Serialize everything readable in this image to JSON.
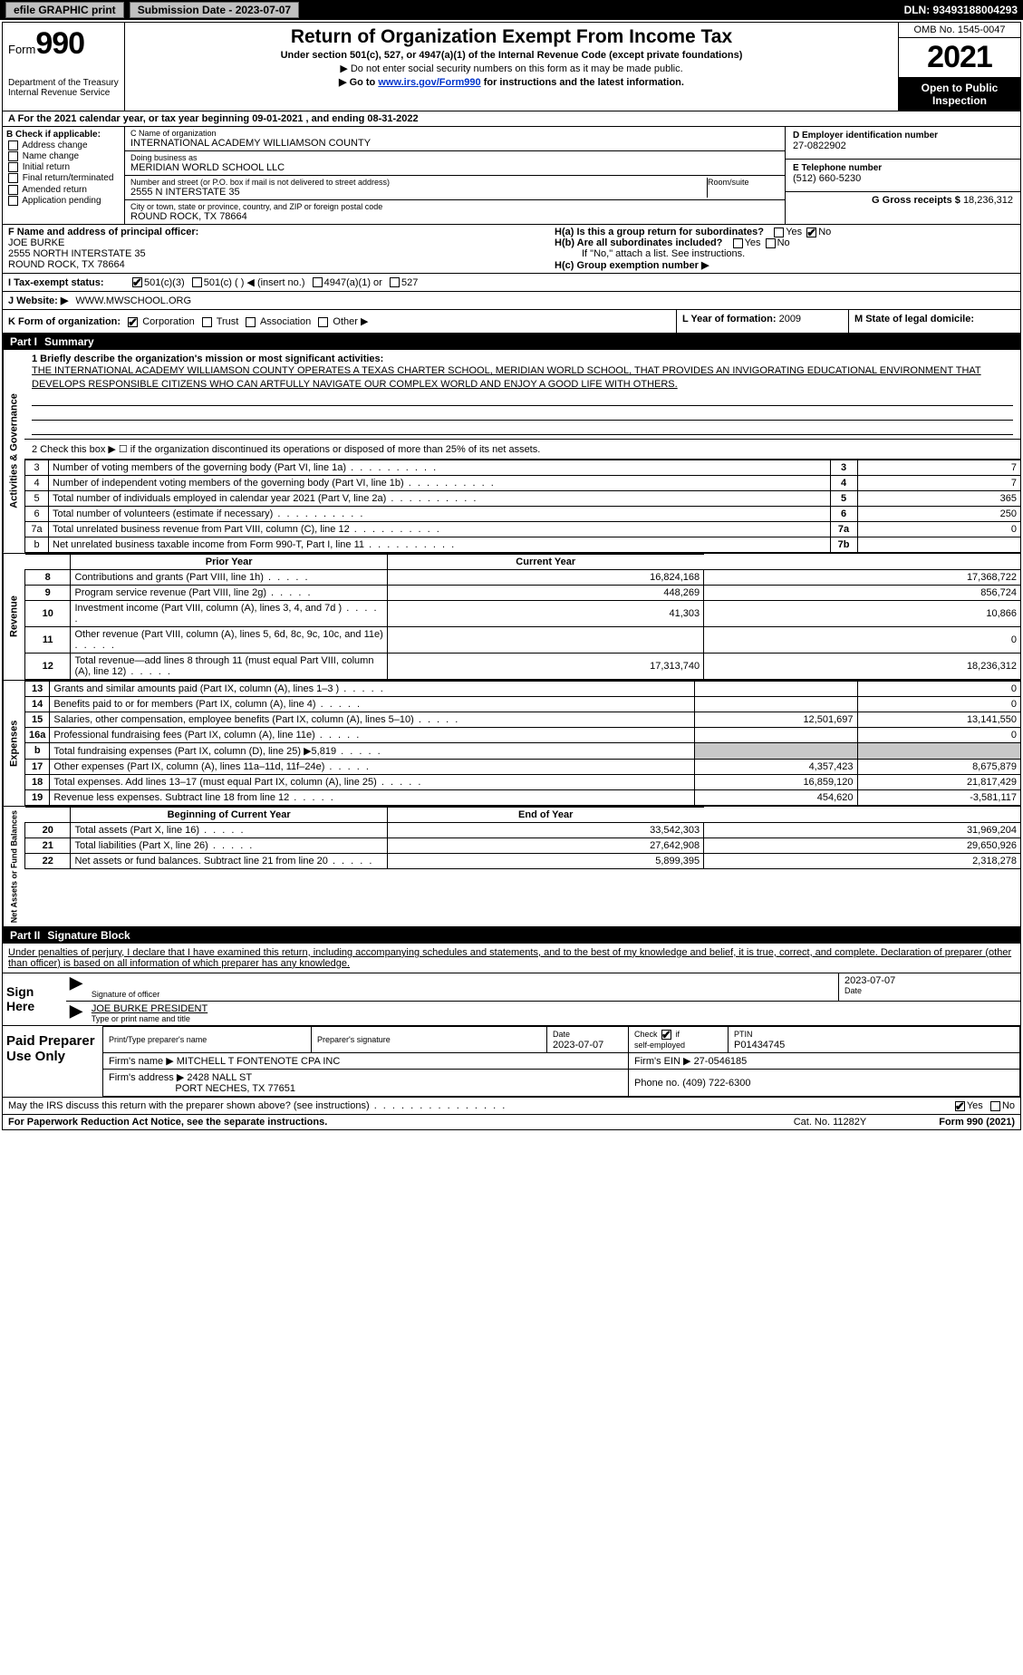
{
  "topbar": {
    "efile_label": "efile GRAPHIC print",
    "submission_label": "Submission Date - 2023-07-07",
    "dln_label": "DLN: 93493188004293"
  },
  "header": {
    "form_prefix": "Form",
    "form_number": "990",
    "dept": "Department of the Treasury\nInternal Revenue Service",
    "title": "Return of Organization Exempt From Income Tax",
    "subtitle": "Under section 501(c), 527, or 4947(a)(1) of the Internal Revenue Code (except private foundations)",
    "note1": "▶ Do not enter social security numbers on this form as it may be made public.",
    "note2_pre": "▶ Go to ",
    "note2_link": "www.irs.gov/Form990",
    "note2_post": " for instructions and the latest information.",
    "omb": "OMB No. 1545-0047",
    "year": "2021",
    "open": "Open to Public Inspection"
  },
  "row_a": "A For the 2021 calendar year, or tax year beginning 09-01-2021   , and ending 08-31-2022",
  "section_b": {
    "b_label": "B Check if applicable:",
    "opts": [
      "Address change",
      "Name change",
      "Initial return",
      "Final return/terminated",
      "Amended return",
      "Application pending"
    ],
    "c_name_lbl": "C Name of organization",
    "c_name": "INTERNATIONAL ACADEMY WILLIAMSON COUNTY",
    "dba_lbl": "Doing business as",
    "dba": "MERIDIAN WORLD SCHOOL LLC",
    "addr_lbl": "Number and street (or P.O. box if mail is not delivered to street address)",
    "room_lbl": "Room/suite",
    "addr": "2555 N INTERSTATE 35",
    "city_lbl": "City or town, state or province, country, and ZIP or foreign postal code",
    "city": "ROUND ROCK, TX  78664",
    "d_lbl": "D Employer identification number",
    "d_val": "27-0822902",
    "e_lbl": "E Telephone number",
    "e_val": "(512) 660-5230",
    "g_lbl": "G Gross receipts $",
    "g_val": "18,236,312"
  },
  "section_fh": {
    "f_lbl": "F Name and address of principal officer:",
    "f_name": "JOE BURKE",
    "f_addr1": "2555 NORTH INTERSTATE 35",
    "f_addr2": "ROUND ROCK, TX  78664",
    "ha_lbl": "H(a)  Is this a group return for subordinates?",
    "ha_yes": "Yes",
    "ha_no": "No",
    "hb_lbl": "H(b)  Are all subordinates included?",
    "hb_note": "If \"No,\" attach a list. See instructions.",
    "hc_lbl": "H(c)  Group exemption number ▶"
  },
  "tax_row": {
    "i_lbl": "I   Tax-exempt status:",
    "o1": "501(c)(3)",
    "o2": "501(c) (   ) ◀ (insert no.)",
    "o3": "4947(a)(1) or",
    "o4": "527"
  },
  "web_row": {
    "j_lbl": "J   Website: ▶",
    "j_val": "WWW.MWSCHOOL.ORG"
  },
  "korg": {
    "k_lbl": "K Form of organization:",
    "opts": [
      "Corporation",
      "Trust",
      "Association",
      "Other ▶"
    ],
    "l_lbl": "L Year of formation:",
    "l_val": "2009",
    "m_lbl": "M State of legal domicile:",
    "m_val": ""
  },
  "part1": {
    "label": "Part I",
    "title": "Summary",
    "side1": "Activities & Governance",
    "side2": "Revenue",
    "side3": "Expenses",
    "side4": "Net Assets or Fund Balances",
    "line1_lbl": "1  Briefly describe the organization's mission or most significant activities:",
    "mission": "THE INTERNATIONAL ACADEMY WILLIAMSON COUNTY OPERATES A TEXAS CHARTER SCHOOL, MERIDIAN WORLD SCHOOL, THAT PROVIDES AN INVIGORATING EDUCATIONAL ENVIRONMENT THAT DEVELOPS RESPONSIBLE CITIZENS WHO CAN ARTFULLY NAVIGATE OUR COMPLEX WORLD AND ENJOY A GOOD LIFE WITH OTHERS.",
    "line2": "2   Check this box ▶ ☐  if the organization discontinued its operations or disposed of more than 25% of its net assets.",
    "rows_a": [
      {
        "n": "3",
        "t": "Number of voting members of the governing body (Part VI, line 1a)",
        "box": "3",
        "v": "7"
      },
      {
        "n": "4",
        "t": "Number of independent voting members of the governing body (Part VI, line 1b)",
        "box": "4",
        "v": "7"
      },
      {
        "n": "5",
        "t": "Total number of individuals employed in calendar year 2021 (Part V, line 2a)",
        "box": "5",
        "v": "365"
      },
      {
        "n": "6",
        "t": "Total number of volunteers (estimate if necessary)",
        "box": "6",
        "v": "250"
      },
      {
        "n": "7a",
        "t": "Total unrelated business revenue from Part VIII, column (C), line 12",
        "box": "7a",
        "v": "0"
      },
      {
        "n": "b",
        "t": "Net unrelated business taxable income from Form 990-T, Part I, line 11",
        "box": "7b",
        "v": ""
      }
    ],
    "hdr_prior": "Prior Year",
    "hdr_curr": "Current Year",
    "rows_rev": [
      {
        "n": "8",
        "t": "Contributions and grants (Part VIII, line 1h)",
        "p": "16,824,168",
        "c": "17,368,722"
      },
      {
        "n": "9",
        "t": "Program service revenue (Part VIII, line 2g)",
        "p": "448,269",
        "c": "856,724"
      },
      {
        "n": "10",
        "t": "Investment income (Part VIII, column (A), lines 3, 4, and 7d )",
        "p": "41,303",
        "c": "10,866"
      },
      {
        "n": "11",
        "t": "Other revenue (Part VIII, column (A), lines 5, 6d, 8c, 9c, 10c, and 11e)",
        "p": "",
        "c": "0"
      },
      {
        "n": "12",
        "t": "Total revenue—add lines 8 through 11 (must equal Part VIII, column (A), line 12)",
        "p": "17,313,740",
        "c": "18,236,312"
      }
    ],
    "rows_exp": [
      {
        "n": "13",
        "t": "Grants and similar amounts paid (Part IX, column (A), lines 1–3 )",
        "p": "",
        "c": "0"
      },
      {
        "n": "14",
        "t": "Benefits paid to or for members (Part IX, column (A), line 4)",
        "p": "",
        "c": "0"
      },
      {
        "n": "15",
        "t": "Salaries, other compensation, employee benefits (Part IX, column (A), lines 5–10)",
        "p": "12,501,697",
        "c": "13,141,550"
      },
      {
        "n": "16a",
        "t": "Professional fundraising fees (Part IX, column (A), line 11e)",
        "p": "",
        "c": "0"
      },
      {
        "n": "b",
        "t": "Total fundraising expenses (Part IX, column (D), line 25) ▶5,819",
        "p": "GREY",
        "c": "GREY"
      },
      {
        "n": "17",
        "t": "Other expenses (Part IX, column (A), lines 11a–11d, 11f–24e)",
        "p": "4,357,423",
        "c": "8,675,879"
      },
      {
        "n": "18",
        "t": "Total expenses. Add lines 13–17 (must equal Part IX, column (A), line 25)",
        "p": "16,859,120",
        "c": "21,817,429"
      },
      {
        "n": "19",
        "t": "Revenue less expenses. Subtract line 18 from line 12",
        "p": "454,620",
        "c": "-3,581,117"
      }
    ],
    "hdr_beg": "Beginning of Current Year",
    "hdr_end": "End of Year",
    "rows_net": [
      {
        "n": "20",
        "t": "Total assets (Part X, line 16)",
        "p": "33,542,303",
        "c": "31,969,204"
      },
      {
        "n": "21",
        "t": "Total liabilities (Part X, line 26)",
        "p": "27,642,908",
        "c": "29,650,926"
      },
      {
        "n": "22",
        "t": "Net assets or fund balances. Subtract line 21 from line 20",
        "p": "5,899,395",
        "c": "2,318,278"
      }
    ]
  },
  "part2": {
    "label": "Part II",
    "title": "Signature Block",
    "penalty": "Under penalties of perjury, I declare that I have examined this return, including accompanying schedules and statements, and to the best of my knowledge and belief, it is true, correct, and complete. Declaration of preparer (other than officer) is based on all information of which preparer has any knowledge.",
    "sign_here": "Sign Here",
    "sig_officer": "Signature of officer",
    "sig_date": "2023-07-07",
    "date_lbl": "Date",
    "name_title": "JOE BURKE  PRESIDENT",
    "name_lbl": "Type or print name and title",
    "prep": "Paid Preparer Use Only",
    "pt_name_lbl": "Print/Type preparer's name",
    "pt_sig_lbl": "Preparer's signature",
    "pt_date_lbl": "Date",
    "pt_date": "2023-07-07",
    "pt_check_lbl": "Check ☑ if self-employed",
    "ptin_lbl": "PTIN",
    "ptin": "P01434745",
    "firm_name_lbl": "Firm's name  ▶",
    "firm_name": "MITCHELL T FONTENOTE CPA INC",
    "firm_ein_lbl": "Firm's EIN ▶",
    "firm_ein": "27-0546185",
    "firm_addr_lbl": "Firm's address ▶",
    "firm_addr1": "2428 NALL ST",
    "firm_addr2": "PORT NECHES, TX  77651",
    "phone_lbl": "Phone no.",
    "phone": "(409) 722-6300",
    "discuss": "May the IRS discuss this return with the preparer shown above? (see instructions)",
    "yes": "Yes",
    "no": "No"
  },
  "footer": {
    "paperwork": "For Paperwork Reduction Act Notice, see the separate instructions.",
    "cat": "Cat. No. 11282Y",
    "form": "Form 990 (2021)"
  }
}
